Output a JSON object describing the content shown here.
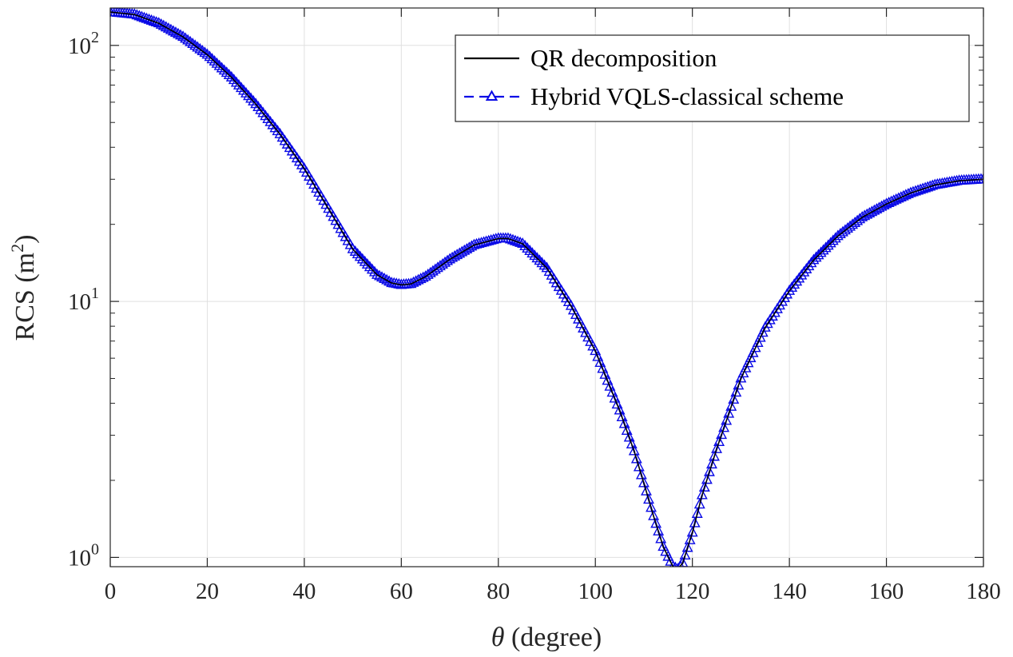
{
  "chart_data": {
    "type": "line",
    "yscale": "log",
    "title": "",
    "xlabel": "θ (degree)",
    "xlabel_symbol": "θ",
    "xlabel_unit": "(degree)",
    "ylabel": "RCS (m²)",
    "ylabel_base": "RCS (m",
    "ylabel_exp": "2",
    "ylabel_close": ")",
    "xlim": [
      0,
      180
    ],
    "ylim": [
      0.92,
      140
    ],
    "xticks": [
      0,
      20,
      40,
      60,
      80,
      100,
      120,
      140,
      160,
      180
    ],
    "xtick_labels": [
      "0",
      "20",
      "40",
      "60",
      "80",
      "100",
      "120",
      "140",
      "160",
      "180"
    ],
    "yticks": [
      1,
      10,
      100
    ],
    "ytick_labels": [
      {
        "base": "10",
        "exp": "0"
      },
      {
        "base": "10",
        "exp": "1"
      },
      {
        "base": "10",
        "exp": "2"
      }
    ],
    "grid": true,
    "legend_position": "top-right",
    "colors": {
      "qr": "#000000",
      "hybrid": "#0a0ae6",
      "grid": "#e0e0e0",
      "axis": "#262626"
    },
    "curve_control_points": {
      "theta": [
        0,
        5,
        10,
        15,
        20,
        25,
        30,
        35,
        40,
        45,
        50,
        55,
        58,
        60,
        62,
        65,
        70,
        75,
        80,
        82,
        85,
        90,
        95,
        100,
        105,
        108,
        110,
        112,
        114,
        116,
        117,
        118,
        120,
        122,
        125,
        130,
        135,
        140,
        145,
        150,
        155,
        160,
        165,
        170,
        175,
        180
      ],
      "rcs": [
        135,
        132,
        122,
        108,
        92,
        75,
        59,
        45,
        33,
        23,
        16,
        12.7,
        11.8,
        11.6,
        11.7,
        12.5,
        14.6,
        16.6,
        17.6,
        17.6,
        16.8,
        13.5,
        9.6,
        6.4,
        3.75,
        2.6,
        1.95,
        1.45,
        1.1,
        0.92,
        0.9,
        0.95,
        1.25,
        1.75,
        2.65,
        5.0,
        7.9,
        11.0,
        14.5,
        18.0,
        21.3,
        24.0,
        26.5,
        28.5,
        29.6,
        30.0
      ]
    },
    "series": [
      {
        "name": "QR decomposition",
        "key": "qr",
        "style": "solid-line"
      },
      {
        "name": "Hybrid VQLS-classical scheme",
        "key": "hybrid",
        "style": "dashed-line-triangle-markers",
        "marker_step_deg": 0.5
      }
    ]
  }
}
